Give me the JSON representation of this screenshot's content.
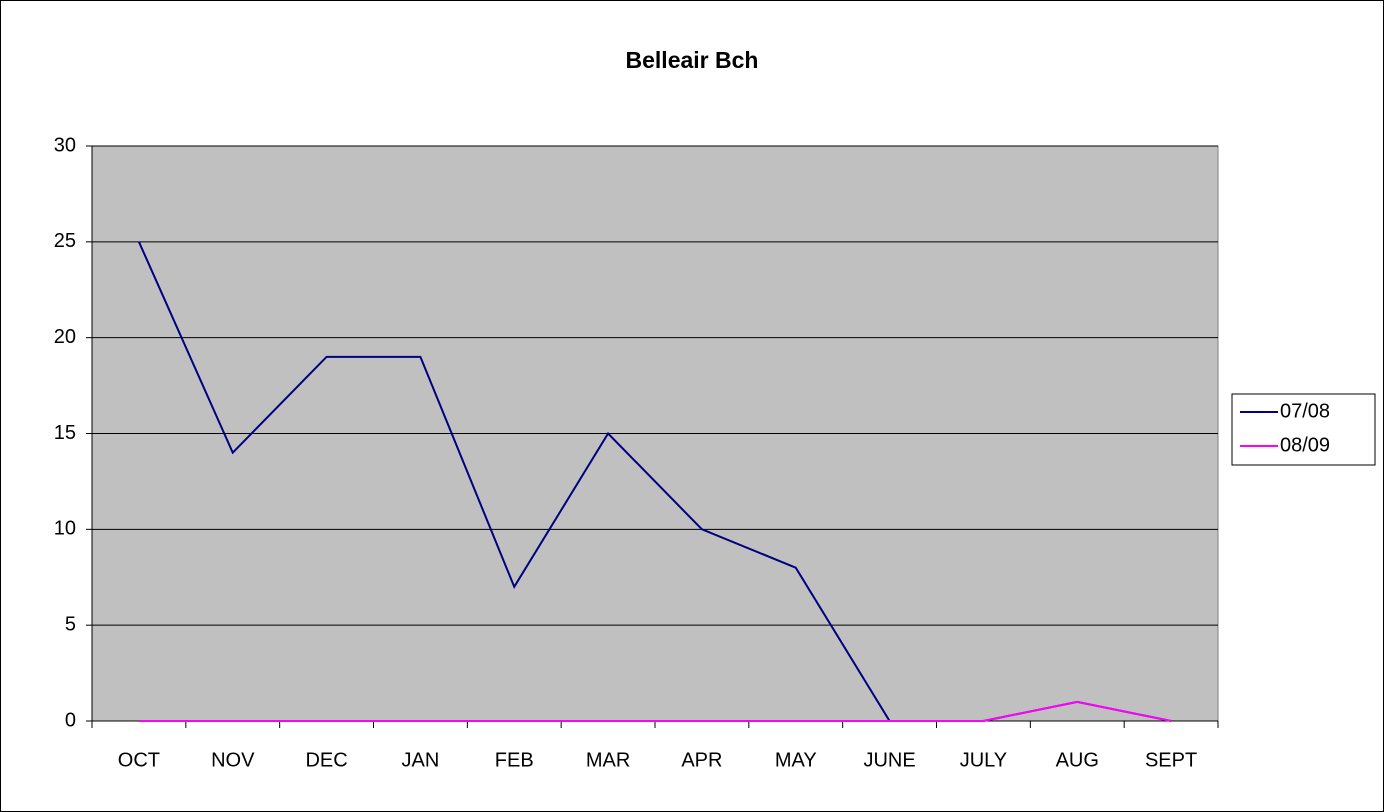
{
  "chart_data": {
    "type": "line",
    "title": "Belleair Bch",
    "categories": [
      "OCT",
      "NOV",
      "DEC",
      "JAN",
      "FEB",
      "MAR",
      "APR",
      "MAY",
      "JUNE",
      "JULY",
      "AUG",
      "SEPT"
    ],
    "series": [
      {
        "name": "07/08",
        "color": "#000080",
        "values": [
          25,
          14,
          19,
          19,
          7,
          15,
          10,
          8,
          0,
          0,
          1,
          0
        ]
      },
      {
        "name": "08/09",
        "color": "#ff00ff",
        "values": [
          0,
          0,
          0,
          0,
          0,
          0,
          0,
          0,
          0,
          0,
          1,
          0
        ]
      }
    ],
    "ylim": [
      0,
      30
    ],
    "yticks": [
      0,
      5,
      10,
      15,
      20,
      25,
      30
    ],
    "grid": true,
    "legend": "right"
  }
}
